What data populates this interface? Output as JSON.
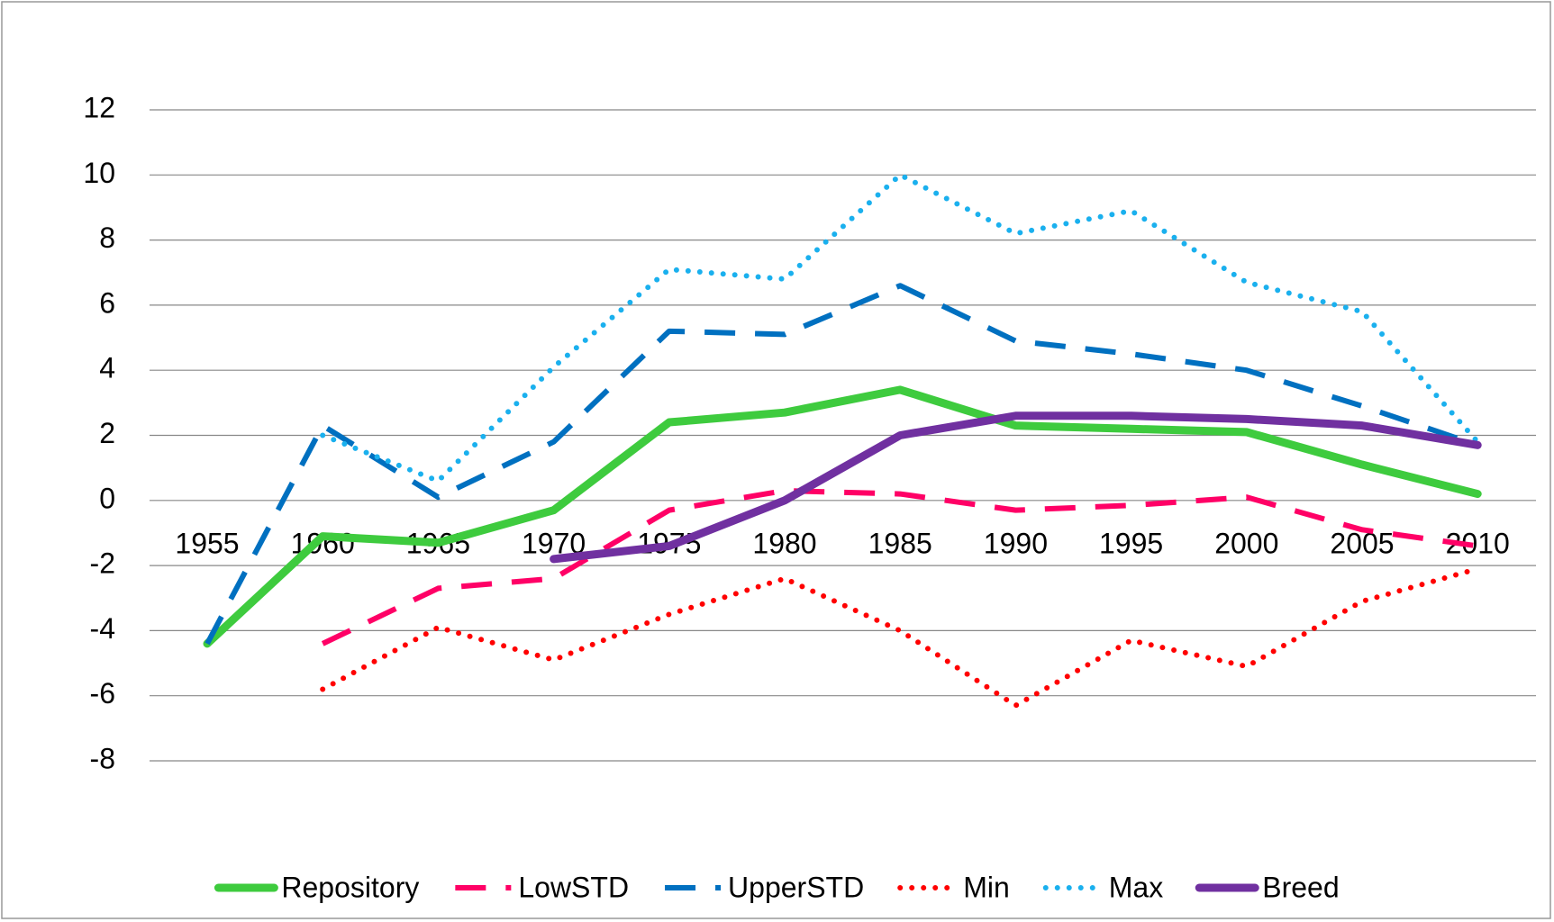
{
  "chart_data": {
    "type": "line",
    "categories": [
      "1955",
      "1960",
      "1965",
      "1970",
      "1975",
      "1980",
      "1985",
      "1990",
      "1995",
      "2000",
      "2005",
      "2010"
    ],
    "series": [
      {
        "name": "Repository",
        "color": "#3ecb3e",
        "style": "solid",
        "values": [
          -4.4,
          -1.1,
          -1.3,
          -0.3,
          2.4,
          2.7,
          3.4,
          2.3,
          2.2,
          2.1,
          1.1,
          0.2
        ]
      },
      {
        "name": "LowSTD",
        "color": "#ff0066",
        "style": "dashed",
        "values": [
          null,
          -4.4,
          -2.7,
          -2.4,
          -0.3,
          0.3,
          0.2,
          -0.3,
          -0.15,
          0.1,
          -0.9,
          -1.4
        ]
      },
      {
        "name": "UpperSTD",
        "color": "#0070c0",
        "style": "dashed",
        "values": [
          -4.4,
          2.3,
          0.1,
          1.8,
          5.2,
          5.1,
          6.6,
          4.9,
          4.5,
          4.0,
          2.9,
          1.7
        ]
      },
      {
        "name": "Min",
        "color": "#ff0000",
        "style": "dotted",
        "values": [
          null,
          -5.8,
          -3.9,
          -4.9,
          -3.5,
          -2.4,
          -4.0,
          -6.3,
          -4.3,
          -5.1,
          -3.1,
          -2.1
        ]
      },
      {
        "name": "Max",
        "color": "#1ab0ee",
        "style": "dotted",
        "values": [
          null,
          2.0,
          0.6,
          4.1,
          7.1,
          6.8,
          10.0,
          8.2,
          8.9,
          6.7,
          5.8,
          1.8
        ]
      },
      {
        "name": "Breed",
        "color": "#7030a0",
        "style": "solid",
        "values": [
          null,
          null,
          null,
          -1.8,
          -1.4,
          0.0,
          2.0,
          2.6,
          2.6,
          2.5,
          2.3,
          1.7
        ]
      }
    ],
    "ylim": [
      -8,
      12
    ],
    "yticks": [
      -8,
      -6,
      -4,
      -2,
      0,
      2,
      4,
      6,
      8,
      10,
      12
    ],
    "grid": true,
    "legend": "bottom"
  }
}
